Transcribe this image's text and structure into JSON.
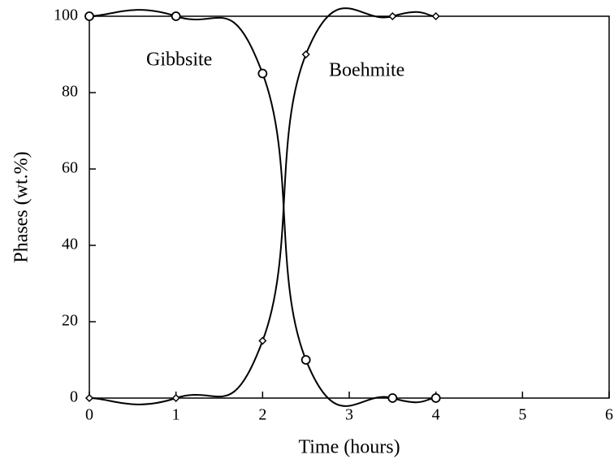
{
  "chart_data": {
    "type": "line",
    "x_label": "Time (hours)",
    "y_label": "Phases (wt.%)",
    "x": [
      0,
      1,
      2,
      2.5,
      3.5,
      4
    ],
    "series": [
      {
        "name": "Gibbsite",
        "color": "#000000",
        "marker": "circle",
        "values": [
          100,
          100,
          85,
          10,
          0,
          0
        ]
      },
      {
        "name": "Boehmite",
        "color": "#000000",
        "marker": "diamond",
        "values": [
          0,
          0,
          15,
          90,
          100,
          100
        ]
      }
    ],
    "xlim": [
      0,
      6
    ],
    "xticks": [
      0,
      1,
      2,
      3,
      4,
      5,
      6
    ],
    "ylim": [
      0,
      100
    ],
    "yticks": [
      0,
      20,
      40,
      60,
      80,
      100
    ],
    "grid": false
  }
}
